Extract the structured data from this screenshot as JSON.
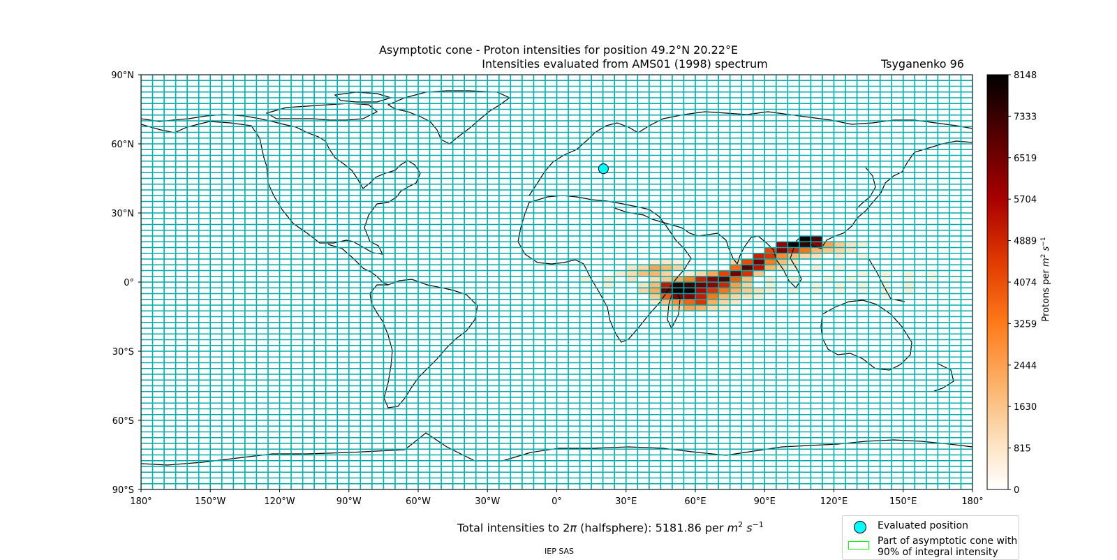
{
  "title": "Asymptotic cone - Proton intensities for position 49.2°N 20.22°E",
  "subtitle": "Intensities evaluated from AMS01 (1998) spectrum",
  "model": "Tsyganenko 96",
  "footer": {
    "prefix": "Total intensities to 2",
    "pi": "π",
    "middle": " (halfsphere): 5181.86 per ",
    "unit_m": "m",
    "unit_exp": "2",
    "unit_s": " s",
    "unit_s_exp": "−1"
  },
  "institute": "IEP SAS",
  "evaluated_position": {
    "lat": 49.2,
    "lon": 20.22
  },
  "colorbar": {
    "label": "Protons per m² s⁻¹",
    "ticks": [
      "0",
      "815",
      "1630",
      "2444",
      "3259",
      "4074",
      "4889",
      "5704",
      "6519",
      "7333",
      "8148"
    ],
    "min": 0,
    "max": 8148,
    "colormap": "gist_heat_r"
  },
  "axes": {
    "x_ticks": [
      "180°",
      "150°W",
      "120°W",
      "90°W",
      "60°W",
      "30°W",
      "0°",
      "30°E",
      "60°E",
      "90°E",
      "120°E",
      "150°E",
      "180°"
    ],
    "y_ticks": [
      "90°N",
      "60°N",
      "30°N",
      "0°",
      "30°S",
      "60°S",
      "90°S"
    ],
    "lon_range": [
      -180,
      180
    ],
    "lat_range": [
      -90,
      90
    ]
  },
  "grid": {
    "lon_step": 5,
    "lat_step": 2.5,
    "color": "#00aaaa"
  },
  "legend": {
    "items": [
      {
        "label": "Evaluated position",
        "marker": "circle",
        "color": "#00ffff"
      },
      {
        "label": "Part of asymptotic cone with",
        "label2": "90% of integral intensity",
        "marker": "rect",
        "color": "#00ff00"
      }
    ]
  },
  "intensity_cells": [
    [
      105,
      17.5,
      8000
    ],
    [
      110,
      17.5,
      7000
    ],
    [
      100,
      15,
      8148
    ],
    [
      105,
      15,
      7400
    ],
    [
      110,
      15,
      6200
    ],
    [
      95,
      15,
      6000
    ],
    [
      115,
      15,
      2400
    ],
    [
      120,
      15,
      1500
    ],
    [
      125,
      15,
      900
    ],
    [
      130,
      15,
      600
    ],
    [
      95,
      12.5,
      6300
    ],
    [
      100,
      12.5,
      4800
    ],
    [
      90,
      12.5,
      4200
    ],
    [
      105,
      12.5,
      3400
    ],
    [
      110,
      12.5,
      2000
    ],
    [
      115,
      12.5,
      1600
    ],
    [
      120,
      12.5,
      1200
    ],
    [
      125,
      12.5,
      800
    ],
    [
      85,
      10,
      5000
    ],
    [
      90,
      10,
      4600
    ],
    [
      95,
      10,
      2900
    ],
    [
      100,
      10,
      1800
    ],
    [
      105,
      10,
      1200
    ],
    [
      110,
      10,
      900
    ],
    [
      120,
      10,
      600
    ],
    [
      130,
      10,
      500
    ],
    [
      85,
      7.5,
      6600
    ],
    [
      80,
      7.5,
      4200
    ],
    [
      90,
      7.5,
      3200
    ],
    [
      95,
      7.5,
      1800
    ],
    [
      75,
      7.5,
      1200
    ],
    [
      100,
      7.5,
      900
    ],
    [
      45,
      7.5,
      800
    ],
    [
      40,
      7.5,
      600
    ],
    [
      50,
      7.5,
      500
    ],
    [
      80,
      5,
      6900
    ],
    [
      85,
      5,
      5300
    ],
    [
      75,
      5,
      3600
    ],
    [
      90,
      5,
      2000
    ],
    [
      40,
      5,
      2400
    ],
    [
      45,
      5,
      1900
    ],
    [
      35,
      5,
      1200
    ],
    [
      50,
      5,
      1300
    ],
    [
      30,
      5,
      800
    ],
    [
      95,
      5,
      1100
    ],
    [
      100,
      5,
      700
    ],
    [
      110,
      5,
      600
    ],
    [
      120,
      5,
      500
    ],
    [
      75,
      2.5,
      6500
    ],
    [
      80,
      2.5,
      4700
    ],
    [
      70,
      2.5,
      4300
    ],
    [
      65,
      2.5,
      2300
    ],
    [
      85,
      2.5,
      1600
    ],
    [
      40,
      2.5,
      2000
    ],
    [
      35,
      2.5,
      1800
    ],
    [
      45,
      2.5,
      1300
    ],
    [
      30,
      2.5,
      1100
    ],
    [
      25,
      2.5,
      700
    ],
    [
      60,
      2.5,
      1200
    ],
    [
      55,
      2.5,
      700
    ],
    [
      130,
      2.5,
      500
    ],
    [
      140,
      2.5,
      500
    ],
    [
      150,
      2.5,
      500
    ],
    [
      160,
      2.5,
      400
    ],
    [
      70,
      0,
      7100
    ],
    [
      65,
      0,
      6200
    ],
    [
      60,
      0,
      5000
    ],
    [
      75,
      0,
      3800
    ],
    [
      55,
      0,
      3100
    ],
    [
      50,
      0,
      2200
    ],
    [
      80,
      0,
      1900
    ],
    [
      45,
      0,
      1500
    ],
    [
      40,
      0,
      1100
    ],
    [
      30,
      0,
      900
    ],
    [
      20,
      0,
      700
    ],
    [
      10,
      0,
      600
    ],
    [
      90,
      0,
      700
    ],
    [
      100,
      0,
      600
    ],
    [
      115,
      0,
      500
    ],
    [
      125,
      0,
      500
    ],
    [
      140,
      0,
      400
    ],
    [
      150,
      0,
      400
    ],
    [
      160,
      0,
      400
    ],
    [
      170,
      0,
      300
    ],
    [
      50,
      -2.5,
      7600
    ],
    [
      55,
      -2.5,
      7300
    ],
    [
      60,
      -2.5,
      6600
    ],
    [
      65,
      -2.5,
      6000
    ],
    [
      70,
      -2.5,
      4900
    ],
    [
      45,
      -2.5,
      5200
    ],
    [
      75,
      -2.5,
      2500
    ],
    [
      40,
      -2.5,
      1900
    ],
    [
      80,
      -2.5,
      1400
    ],
    [
      35,
      -2.5,
      900
    ],
    [
      20,
      -2.5,
      600
    ],
    [
      90,
      -2.5,
      600
    ],
    [
      110,
      -2.5,
      500
    ],
    [
      120,
      -2.5,
      500
    ],
    [
      130,
      -2.5,
      500
    ],
    [
      140,
      -2.5,
      400
    ],
    [
      150,
      -2.5,
      600
    ],
    [
      50,
      -5,
      8148
    ],
    [
      55,
      -5,
      7800
    ],
    [
      45,
      -5,
      6800
    ],
    [
      60,
      -5,
      5600
    ],
    [
      65,
      -5,
      4600
    ],
    [
      70,
      -5,
      3400
    ],
    [
      40,
      -5,
      2200
    ],
    [
      75,
      -5,
      2100
    ],
    [
      80,
      -5,
      1500
    ],
    [
      85,
      -5,
      1000
    ],
    [
      35,
      -5,
      1200
    ],
    [
      90,
      -5,
      700
    ],
    [
      100,
      -5,
      500
    ],
    [
      110,
      -5,
      500
    ],
    [
      120,
      -5,
      500
    ],
    [
      130,
      -5,
      400
    ],
    [
      140,
      -5,
      500
    ],
    [
      150,
      -5,
      600
    ],
    [
      50,
      -7.5,
      6400
    ],
    [
      55,
      -7.5,
      6200
    ],
    [
      60,
      -7.5,
      5100
    ],
    [
      45,
      -7.5,
      3900
    ],
    [
      65,
      -7.5,
      3300
    ],
    [
      70,
      -7.5,
      2000
    ],
    [
      40,
      -7.5,
      1500
    ],
    [
      75,
      -7.5,
      1200
    ],
    [
      80,
      -7.5,
      900
    ],
    [
      85,
      -7.5,
      600
    ],
    [
      140,
      -7.5,
      400
    ],
    [
      55,
      -10,
      3700
    ],
    [
      60,
      -10,
      4600
    ],
    [
      50,
      -10,
      2800
    ],
    [
      65,
      -10,
      2100
    ],
    [
      45,
      -10,
      1700
    ],
    [
      70,
      -10,
      1200
    ],
    [
      75,
      -10,
      800
    ],
    [
      40,
      -10,
      700
    ],
    [
      55,
      -12.5,
      2400
    ],
    [
      60,
      -12.5,
      2100
    ],
    [
      50,
      -12.5,
      1300
    ],
    [
      65,
      -12.5,
      1100
    ],
    [
      70,
      -12.5,
      700
    ],
    [
      45,
      -12.5,
      600
    ]
  ]
}
